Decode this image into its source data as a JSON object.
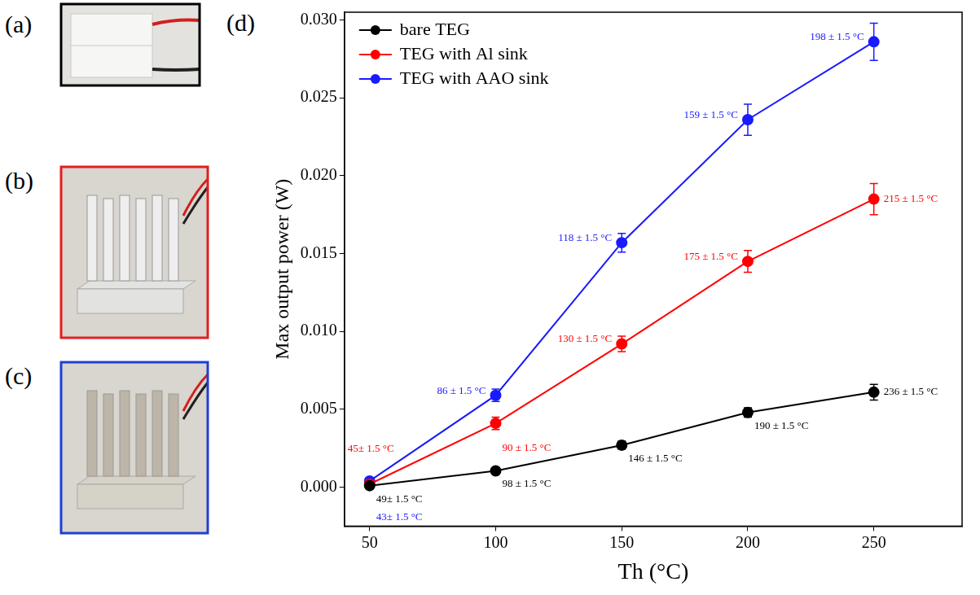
{
  "chart_data": {
    "type": "line",
    "x_label": "Th (°C)",
    "y_label": "Max output power (W)",
    "x": [
      50,
      100,
      150,
      200,
      250
    ],
    "xlim": [
      40,
      285
    ],
    "xticks": [
      50,
      100,
      150,
      200,
      250
    ],
    "ylim": [
      -0.0025,
      0.0305
    ],
    "yticks": [
      {
        "value": 0,
        "label": "0.000"
      },
      {
        "value": 0.005,
        "label": "0.005"
      },
      {
        "value": 0.01,
        "label": "0.010"
      },
      {
        "value": 0.015,
        "label": "0.015"
      },
      {
        "value": 0.02,
        "label": "0.020"
      },
      {
        "value": 0.025,
        "label": "0.025"
      },
      {
        "value": 0.03,
        "label": "0.030"
      }
    ],
    "grid": false,
    "legend": "upper left",
    "marker": "circle",
    "series": [
      {
        "name": "bare TEG",
        "color": "#000000",
        "values": [
          0.0001,
          0.00105,
          0.0027,
          0.0048,
          0.0061
        ],
        "errors": [
          0.0002,
          0.0002,
          0.00025,
          0.0003,
          0.0005
        ],
        "annotations": [
          "49± 1.5 °C",
          "98 ± 1.5 °C",
          "146 ± 1.5 °C",
          "190 ± 1.5 °C",
          "236 ± 1.5 °C"
        ]
      },
      {
        "name": "TEG with Al sink",
        "color": "#ff0000",
        "values": [
          0.0002,
          0.0041,
          0.0092,
          0.0145,
          0.0185
        ],
        "errors": [
          0.0002,
          0.0004,
          0.0005,
          0.0007,
          0.001
        ],
        "annotations": [
          "45± 1.5 °C",
          "90 ± 1.5 °C",
          "130 ± 1.5 °C",
          "175 ± 1.5 °C",
          "215 ± 1.5 °C"
        ]
      },
      {
        "name": "TEG with AAO sink",
        "color": "#1a1aff",
        "values": [
          0.0004,
          0.0059,
          0.0157,
          0.0236,
          0.0286
        ],
        "errors": [
          0.0002,
          0.0004,
          0.0006,
          0.001,
          0.0012
        ],
        "annotations": [
          "43± 1.5 °C",
          "86 ± 1.5 °C",
          "118 ± 1.5 °C",
          "159 ± 1.5 °C",
          "198 ± 1.5 °C"
        ]
      }
    ]
  },
  "panels": [
    {
      "label": "(a)",
      "color": "#000000"
    },
    {
      "label": "(b)",
      "color": "#e02020"
    },
    {
      "label": "(c)",
      "color": "#2040d0"
    },
    {
      "label": "(d)"
    }
  ]
}
